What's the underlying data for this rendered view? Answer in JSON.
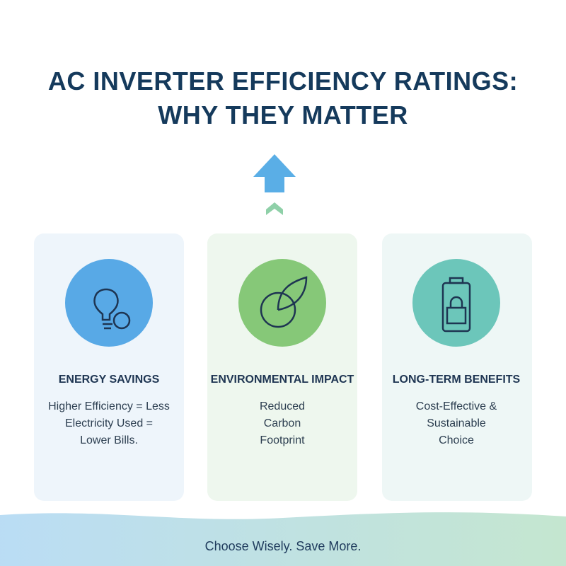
{
  "header": {
    "title_line1": "AC INVERTER EFFICIENCY RATINGS:",
    "title_line2": "WHY THEY MATTER"
  },
  "cards": [
    {
      "title": "ENERGY SAVINGS",
      "lines": [
        "Higher Efficiency = Less",
        "Electricity Used =",
        "Lower Bills."
      ]
    },
    {
      "title": "ENVIRONMENTAL IMPACT",
      "lines": [
        "Reduced",
        "Carbon",
        "Footprint"
      ]
    },
    {
      "title": "LONG-TERM BENEFITS",
      "lines": [
        "Cost-Effective &",
        "Sustainable",
        "Choice"
      ]
    }
  ],
  "footer": {
    "text": "Choose Wisely. Save More."
  }
}
